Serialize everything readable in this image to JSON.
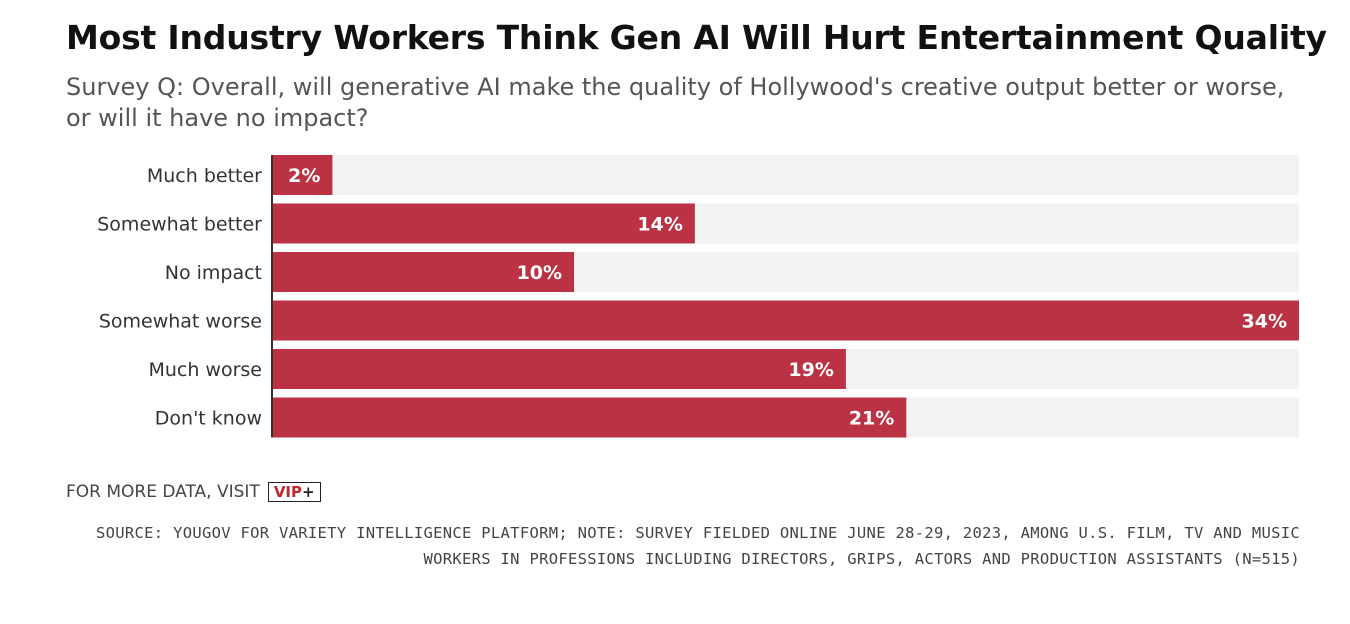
{
  "header": {
    "title": "Most Industry Workers Think Gen AI Will Hurt Entertainment Quality",
    "subtitle": "Survey Q: Overall, will generative AI make the quality of Hollywood's creative output better or worse, or will it have no impact?"
  },
  "chart_data": {
    "type": "bar",
    "orientation": "horizontal",
    "categories": [
      "Much better",
      "Somewhat better",
      "No impact",
      "Somewhat worse",
      "Much worse",
      "Don't know"
    ],
    "values": [
      2,
      14,
      10,
      34,
      19,
      21
    ],
    "value_labels": [
      "2%",
      "14%",
      "10%",
      "34%",
      "19%",
      "21%"
    ],
    "unit": "%",
    "xlim": [
      0,
      34
    ],
    "grid": false,
    "legend": "none",
    "colors": {
      "bar": "#bb3244",
      "track": "#f2f2f2",
      "axis": "#333333"
    }
  },
  "footer": {
    "visit_text": "FOR MORE DATA, VISIT",
    "vip_label": "VIP",
    "vip_plus": "+",
    "source": "SOURCE: YOUGOV FOR VARIETY INTELLIGENCE PLATFORM; NOTE: SURVEY FIELDED ONLINE JUNE 28-29, 2023, AMONG U.S. FILM, TV AND MUSIC WORKERS IN PROFESSIONS INCLUDING DIRECTORS, GRIPS, ACTORS AND PRODUCTION ASSISTANTS (N=515)"
  }
}
